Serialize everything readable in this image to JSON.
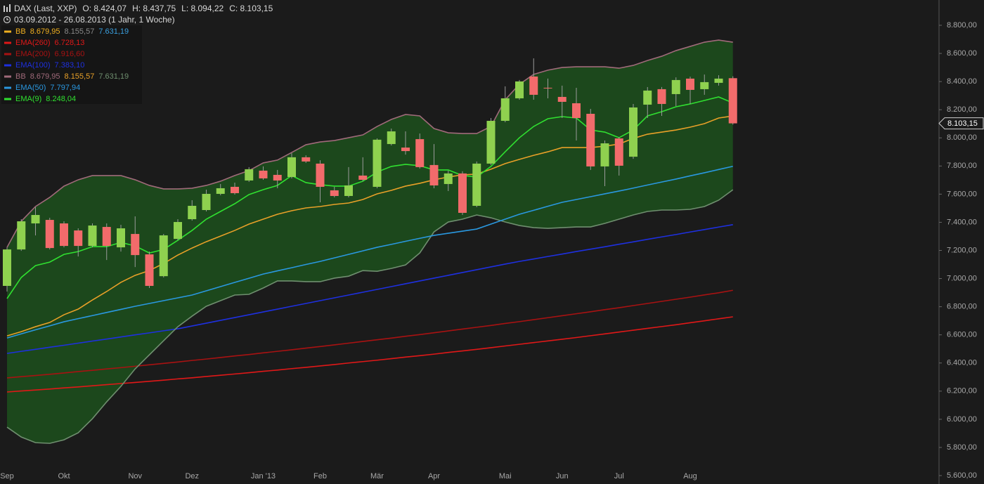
{
  "chart_data": {
    "type": "candlestick",
    "title": "DAX (Last, XXP)",
    "ohlc_texts": [
      "O: 8.424,07",
      "H: 8.437,75",
      "L: 8.094,22",
      "C: 8.103,15"
    ],
    "period": "03.09.2012 - 26.08.2013 (1 Jahr, 1 Woche)",
    "categories": [
      "Sep",
      null,
      null,
      null,
      "Okt",
      null,
      null,
      null,
      null,
      "Nov",
      null,
      null,
      null,
      "Dez",
      null,
      null,
      null,
      null,
      "Jan '13",
      null,
      null,
      null,
      "Feb",
      null,
      null,
      null,
      "Mär",
      null,
      null,
      null,
      "Apr",
      null,
      null,
      null,
      null,
      "Mai",
      null,
      null,
      null,
      "Jun",
      null,
      null,
      null,
      "Jul",
      null,
      null,
      null,
      null,
      "Aug",
      null,
      null,
      null
    ],
    "open": [
      6948,
      7207,
      7392,
      7417,
      7392,
      7342,
      7232,
      7367,
      7222,
      7317,
      7172,
      7017,
      7282,
      7422,
      7487,
      7602,
      7652,
      7697,
      7767,
      7737,
      7722,
      7862,
      7817,
      7627,
      7587,
      7732,
      7652,
      7956,
      7931,
      7991,
      7807,
      7672,
      7747,
      7517,
      7817,
      8121,
      8281,
      8436,
      8356,
      8291,
      8246,
      8171,
      7797,
      7996,
      7866,
      8236,
      8346,
      8311,
      8421,
      8346,
      8391,
      8424.07
    ],
    "high": [
      7222,
      7422,
      7507,
      7432,
      7407,
      7357,
      7392,
      7392,
      7382,
      7442,
      7192,
      7317,
      7422,
      7557,
      7632,
      7672,
      7682,
      7792,
      7797,
      7772,
      7891,
      7876,
      7841,
      7652,
      7792,
      7862,
      7996,
      8066,
      8046,
      8031,
      7956,
      7767,
      7762,
      7832,
      8141,
      8366,
      8411,
      8565,
      8421,
      8371,
      8356,
      8206,
      7981,
      8006,
      8241,
      8361,
      8361,
      8430,
      8435,
      8450,
      8445,
      8437.75
    ],
    "low": [
      6908,
      7197,
      7307,
      7207,
      7222,
      7157,
      7222,
      7132,
      7192,
      7082,
      6933,
      7008,
      7272,
      7412,
      7477,
      7592,
      7597,
      7687,
      7702,
      7642,
      7712,
      7822,
      7542,
      7577,
      7577,
      7692,
      7642,
      7946,
      7881,
      7782,
      7642,
      7622,
      7452,
      7507,
      7807,
      8111,
      8271,
      8271,
      8281,
      8141,
      7981,
      7772,
      7657,
      7732,
      7851,
      8141,
      8156,
      8226,
      8241,
      8306,
      8371,
      8094.22
    ],
    "close": [
      7207,
      7407,
      7452,
      7217,
      7232,
      7232,
      7377,
      7232,
      7357,
      7167,
      6948,
      7307,
      7402,
      7517,
      7602,
      7642,
      7607,
      7777,
      7712,
      7697,
      7862,
      7832,
      7652,
      7587,
      7662,
      7702,
      7987,
      8046,
      7906,
      7792,
      7662,
      7747,
      7467,
      7817,
      8121,
      8281,
      8401,
      8306,
      8351,
      8256,
      8141,
      7797,
      7961,
      7802,
      8216,
      8336,
      8241,
      8411,
      8341,
      8396,
      8421,
      8103.15
    ],
    "close_label": "8.103,15",
    "up_color": "#8fd14f",
    "down_color": "#f26b6b",
    "wick_color": "#9a9a9a",
    "series": [
      {
        "name": "BB",
        "color": "#f0b020",
        "value_labels": [
          "8.679,95",
          "8.155,57",
          "7.631,19"
        ],
        "label_colors": [
          "#f0b020",
          "#8a8a8a",
          "#3aa0e0"
        ]
      },
      {
        "name": "EMA(260)",
        "color": "#e01818",
        "value_labels": [
          "6.728,13"
        ],
        "values": [
          6194,
          6201,
          6208,
          6215,
          6223,
          6230,
          6238,
          6246,
          6254,
          6262,
          6270,
          6278,
          6287,
          6295,
          6304,
          6313,
          6322,
          6331,
          6341,
          6350,
          6360,
          6369,
          6379,
          6389,
          6400,
          6410,
          6420,
          6431,
          6442,
          6452,
          6463,
          6475,
          6486,
          6497,
          6509,
          6521,
          6533,
          6545,
          6557,
          6569,
          6581,
          6594,
          6607,
          6620,
          6633,
          6646,
          6659,
          6672,
          6686,
          6700,
          6714,
          6728.13
        ]
      },
      {
        "name": "EMA(200)",
        "color": "#a81212",
        "value_labels": [
          "6.916,60"
        ],
        "values": [
          6294,
          6303,
          6311,
          6320,
          6329,
          6339,
          6348,
          6358,
          6367,
          6377,
          6387,
          6397,
          6407,
          6418,
          6428,
          6439,
          6450,
          6460,
          6472,
          6483,
          6494,
          6506,
          6517,
          6529,
          6541,
          6553,
          6565,
          6577,
          6590,
          6602,
          6615,
          6628,
          6641,
          6654,
          6667,
          6681,
          6694,
          6708,
          6722,
          6736,
          6750,
          6764,
          6779,
          6793,
          6808,
          6823,
          6838,
          6853,
          6868,
          6884,
          6899,
          6916.6
        ]
      },
      {
        "name": "EMA(100)",
        "color": "#1e30e0",
        "value_labels": [
          "7.383,10"
        ],
        "values": [
          6468,
          6483,
          6497,
          6512,
          6526,
          6541,
          6556,
          6570,
          6585,
          6600,
          6614,
          6629,
          6643,
          6663,
          6683,
          6703,
          6723,
          6743,
          6763,
          6783,
          6803,
          6823,
          6843,
          6863,
          6883,
          6903,
          6923,
          6943,
          6963,
          6983,
          7003,
          7023,
          7043,
          7063,
          7083,
          7103,
          7122,
          7139,
          7157,
          7174,
          7192,
          7209,
          7226,
          7244,
          7261,
          7279,
          7296,
          7313,
          7331,
          7348,
          7366,
          7383.1
        ]
      },
      {
        "name": "BB",
        "color": "#a06a7a",
        "middle_color": "#e8a028",
        "lower_color": "#6f8f6f",
        "fill": "#1c481c",
        "value_labels": [
          "8.679,95",
          "8.155,57",
          "7.631,19"
        ],
        "label_colors": [
          "#a06a7a",
          "#e8a028",
          "#6f8f6f"
        ],
        "upper": [
          7222,
          7407,
          7512,
          7577,
          7657,
          7702,
          7732,
          7732,
          7732,
          7702,
          7662,
          7637,
          7637,
          7642,
          7662,
          7692,
          7732,
          7767,
          7822,
          7842,
          7896,
          7951,
          7971,
          7981,
          8001,
          8021,
          8081,
          8131,
          8166,
          8156,
          8066,
          8036,
          8031,
          8031,
          8081,
          8271,
          8381,
          8451,
          8481,
          8500,
          8505,
          8505,
          8505,
          8495,
          8515,
          8550,
          8580,
          8620,
          8650,
          8680,
          8695,
          8679.95
        ],
        "middle": [
          6593,
          6623,
          6658,
          6688,
          6743,
          6783,
          6848,
          6908,
          6973,
          7023,
          7057,
          7107,
          7167,
          7217,
          7262,
          7302,
          7342,
          7387,
          7422,
          7457,
          7482,
          7502,
          7512,
          7527,
          7537,
          7562,
          7602,
          7627,
          7657,
          7677,
          7702,
          7722,
          7737,
          7742,
          7777,
          7817,
          7847,
          7876,
          7901,
          7931,
          7931,
          7931,
          7941,
          7956,
          7996,
          8026,
          8041,
          8056,
          8076,
          8101,
          8141,
          8155.57
        ],
        "lower": [
          5944,
          5874,
          5834,
          5829,
          5854,
          5904,
          6004,
          6124,
          6234,
          6358,
          6458,
          6558,
          6658,
          6733,
          6803,
          6843,
          6883,
          6888,
          6933,
          6983,
          6983,
          6978,
          6978,
          7003,
          7017,
          7057,
          7052,
          7072,
          7097,
          7182,
          7332,
          7402,
          7422,
          7452,
          7432,
          7402,
          7377,
          7362,
          7357,
          7362,
          7367,
          7367,
          7392,
          7422,
          7452,
          7477,
          7487,
          7487,
          7492,
          7512,
          7557,
          7631.19
        ]
      },
      {
        "name": "EMA(50)",
        "color": "#2a98e0",
        "value_labels": [
          "7.797,94"
        ],
        "values": [
          6578,
          6607,
          6636,
          6664,
          6693,
          6715,
          6737,
          6759,
          6781,
          6803,
          6823,
          6843,
          6863,
          6883,
          6913,
          6943,
          6973,
          7002,
          7032,
          7055,
          7077,
          7100,
          7122,
          7147,
          7172,
          7197,
          7222,
          7243,
          7265,
          7286,
          7307,
          7322,
          7337,
          7352,
          7387,
          7422,
          7457,
          7485,
          7514,
          7542,
          7562,
          7582,
          7602,
          7622,
          7643,
          7665,
          7686,
          7707,
          7730,
          7752,
          7775,
          7797.94
        ]
      },
      {
        "name": "EMA(9)",
        "color": "#30e030",
        "value_labels": [
          "8.248,04"
        ],
        "values": [
          6858,
          7008,
          7092,
          7117,
          7172,
          7192,
          7227,
          7227,
          7257,
          7232,
          7182,
          7207,
          7272,
          7342,
          7422,
          7477,
          7532,
          7597,
          7632,
          7662,
          7732,
          7682,
          7667,
          7657,
          7657,
          7692,
          7757,
          7797,
          7812,
          7802,
          7772,
          7772,
          7732,
          7722,
          7797,
          7901,
          8001,
          8081,
          8136,
          8151,
          8141,
          8056,
          8041,
          8001,
          8056,
          8156,
          8186,
          8221,
          8241,
          8266,
          8291,
          8248.04
        ]
      }
    ],
    "ylim": [
      5600,
      8800
    ],
    "yticks": [
      {
        "value": 5600,
        "label": "5.600,00"
      },
      {
        "value": 5800,
        "label": "5.800,00"
      },
      {
        "value": 6000,
        "label": "6.000,00"
      },
      {
        "value": 6200,
        "label": "6.200,00"
      },
      {
        "value": 6400,
        "label": "6.400,00"
      },
      {
        "value": 6600,
        "label": "6.600,00"
      },
      {
        "value": 6800,
        "label": "6.800,00"
      },
      {
        "value": 7000,
        "label": "7.000,00"
      },
      {
        "value": 7200,
        "label": "7.200,00"
      },
      {
        "value": 7400,
        "label": "7.400,00"
      },
      {
        "value": 7600,
        "label": "7.600,00"
      },
      {
        "value": 7800,
        "label": "7.800,00"
      },
      {
        "value": 8000,
        "label": "8.000,00"
      },
      {
        "value": 8200,
        "label": "8.200,00"
      },
      {
        "value": 8400,
        "label": "8.400,00"
      },
      {
        "value": 8600,
        "label": "8.600,00"
      },
      {
        "value": 8800,
        "label": "8.800,00"
      }
    ],
    "grid": false
  }
}
